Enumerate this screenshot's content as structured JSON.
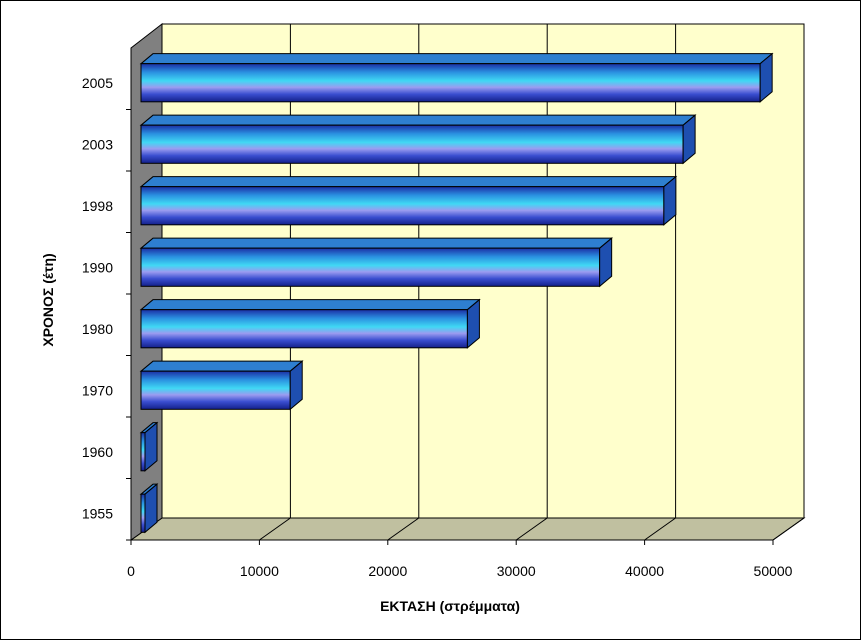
{
  "chart_data": {
    "type": "bar",
    "orientation": "horizontal",
    "style": "3d",
    "categories": [
      "1955",
      "1960",
      "1970",
      "1980",
      "1990",
      "1998",
      "2003",
      "2005"
    ],
    "values": [
      100,
      100,
      12400,
      26200,
      36500,
      41500,
      43000,
      49000
    ],
    "xlabel": "ΕΚΤΑΣΗ (στρέμματα)",
    "ylabel": "ΧΡΟΝΟΣ (έτη)",
    "xlim": [
      0,
      50000
    ],
    "xticks": [
      "0",
      "10000",
      "20000",
      "30000",
      "40000",
      "50000"
    ],
    "grid": true,
    "legend": "none",
    "colors": {
      "plot_wall": "#ffffcc",
      "floor": "#c0c0a0",
      "side_wall": "#808080",
      "bar_dark": "#1a2fa0",
      "bar_light": "#38d0f0",
      "bar_top": "#2e7fd0",
      "bar_end": "#1e4fb0"
    }
  }
}
